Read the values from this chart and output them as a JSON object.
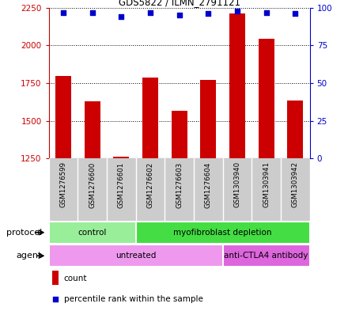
{
  "title": "GDS5822 / ILMN_2791121",
  "samples": [
    "GSM1276599",
    "GSM1276600",
    "GSM1276601",
    "GSM1276602",
    "GSM1276603",
    "GSM1276604",
    "GSM1303940",
    "GSM1303941",
    "GSM1303942"
  ],
  "counts": [
    1800,
    1630,
    1265,
    1790,
    1565,
    1770,
    2210,
    2045,
    1635
  ],
  "percentile_ranks": [
    97,
    97,
    94,
    97,
    95,
    96,
    98,
    97,
    96
  ],
  "ylim_left": [
    1250,
    2250
  ],
  "ylim_right": [
    0,
    100
  ],
  "yticks_left": [
    1250,
    1500,
    1750,
    2000,
    2250
  ],
  "yticks_right": [
    0,
    25,
    50,
    75,
    100
  ],
  "bar_color": "#cc0000",
  "dot_color": "#0000cc",
  "protocol_groups": [
    {
      "label": "control",
      "start": 0,
      "end": 3,
      "color": "#99ee99"
    },
    {
      "label": "myofibroblast depletion",
      "start": 3,
      "end": 9,
      "color": "#44dd44"
    }
  ],
  "agent_groups": [
    {
      "label": "untreated",
      "start": 0,
      "end": 6,
      "color": "#ee99ee"
    },
    {
      "label": "anti-CTLA4 antibody",
      "start": 6,
      "end": 9,
      "color": "#dd66dd"
    }
  ],
  "protocol_label": "protocol",
  "agent_label": "agent",
  "legend_count_label": "count",
  "legend_percentile_label": "percentile rank within the sample",
  "left_axis_color": "#cc0000",
  "right_axis_color": "#0000cc",
  "plot_bg_color": "#dddddd",
  "label_bg_color": "#cccccc"
}
